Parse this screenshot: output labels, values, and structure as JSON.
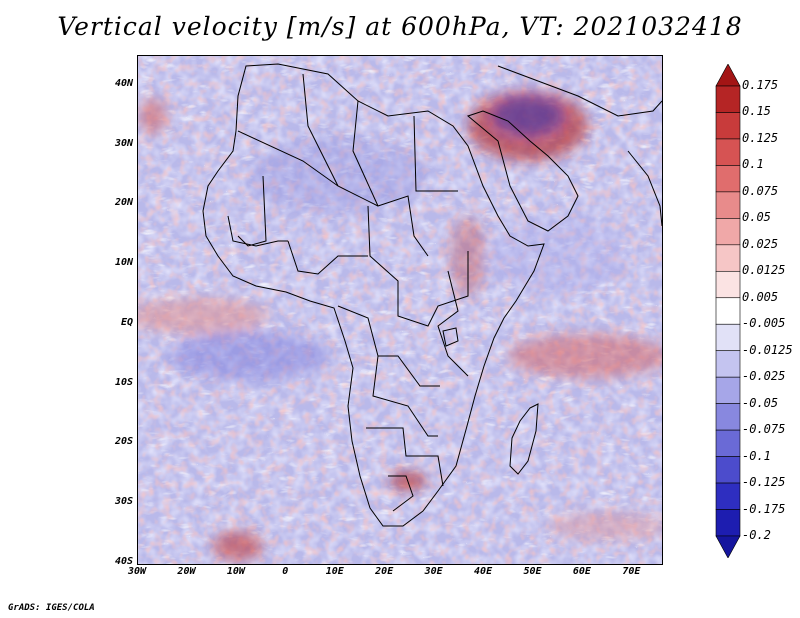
{
  "title": "Vertical velocity [m/s] at 600hPa, VT: 2021032418",
  "credit": "GrADS: IGES/COLA",
  "map": {
    "lon_range": [
      -30,
      76
    ],
    "lat_range": [
      -40,
      45
    ],
    "lat_ticks": [
      {
        "label": "40N",
        "value": 40
      },
      {
        "label": "30N",
        "value": 30
      },
      {
        "label": "20N",
        "value": 20
      },
      {
        "label": "10N",
        "value": 10
      },
      {
        "label": "EQ",
        "value": 0
      },
      {
        "label": "10S",
        "value": -10
      },
      {
        "label": "20S",
        "value": -20
      },
      {
        "label": "30S",
        "value": -30
      },
      {
        "label": "40S",
        "value": -40
      }
    ],
    "lon_ticks": [
      {
        "label": "30W",
        "value": -30
      },
      {
        "label": "20W",
        "value": -20
      },
      {
        "label": "10W",
        "value": -10
      },
      {
        "label": "0",
        "value": 0
      },
      {
        "label": "10E",
        "value": 10
      },
      {
        "label": "20E",
        "value": 20
      },
      {
        "label": "30E",
        "value": 30
      },
      {
        "label": "40E",
        "value": 40
      },
      {
        "label": "50E",
        "value": 50
      },
      {
        "label": "60E",
        "value": 60
      },
      {
        "label": "70E",
        "value": 70
      }
    ]
  },
  "colorbar": {
    "labels": [
      "0.175",
      "0.15",
      "0.125",
      "0.1",
      "0.075",
      "0.05",
      "0.025",
      "0.0125",
      "0.005",
      "-0.005",
      "-0.0125",
      "-0.025",
      "-0.05",
      "-0.075",
      "-0.1",
      "-0.125",
      "-0.175",
      "-0.2"
    ],
    "colors": [
      "#a31515",
      "#b52525",
      "#c83b3b",
      "#d65353",
      "#e06d6d",
      "#e88b8b",
      "#f0a8a8",
      "#f6c6c6",
      "#fbe3e3",
      "#ffffff",
      "#e1e1f7",
      "#c4c4f0",
      "#a6a6e8",
      "#8888df",
      "#6a6ad6",
      "#4c4ccc",
      "#2e2ec0",
      "#1d1db0",
      "#15159e"
    ]
  }
}
